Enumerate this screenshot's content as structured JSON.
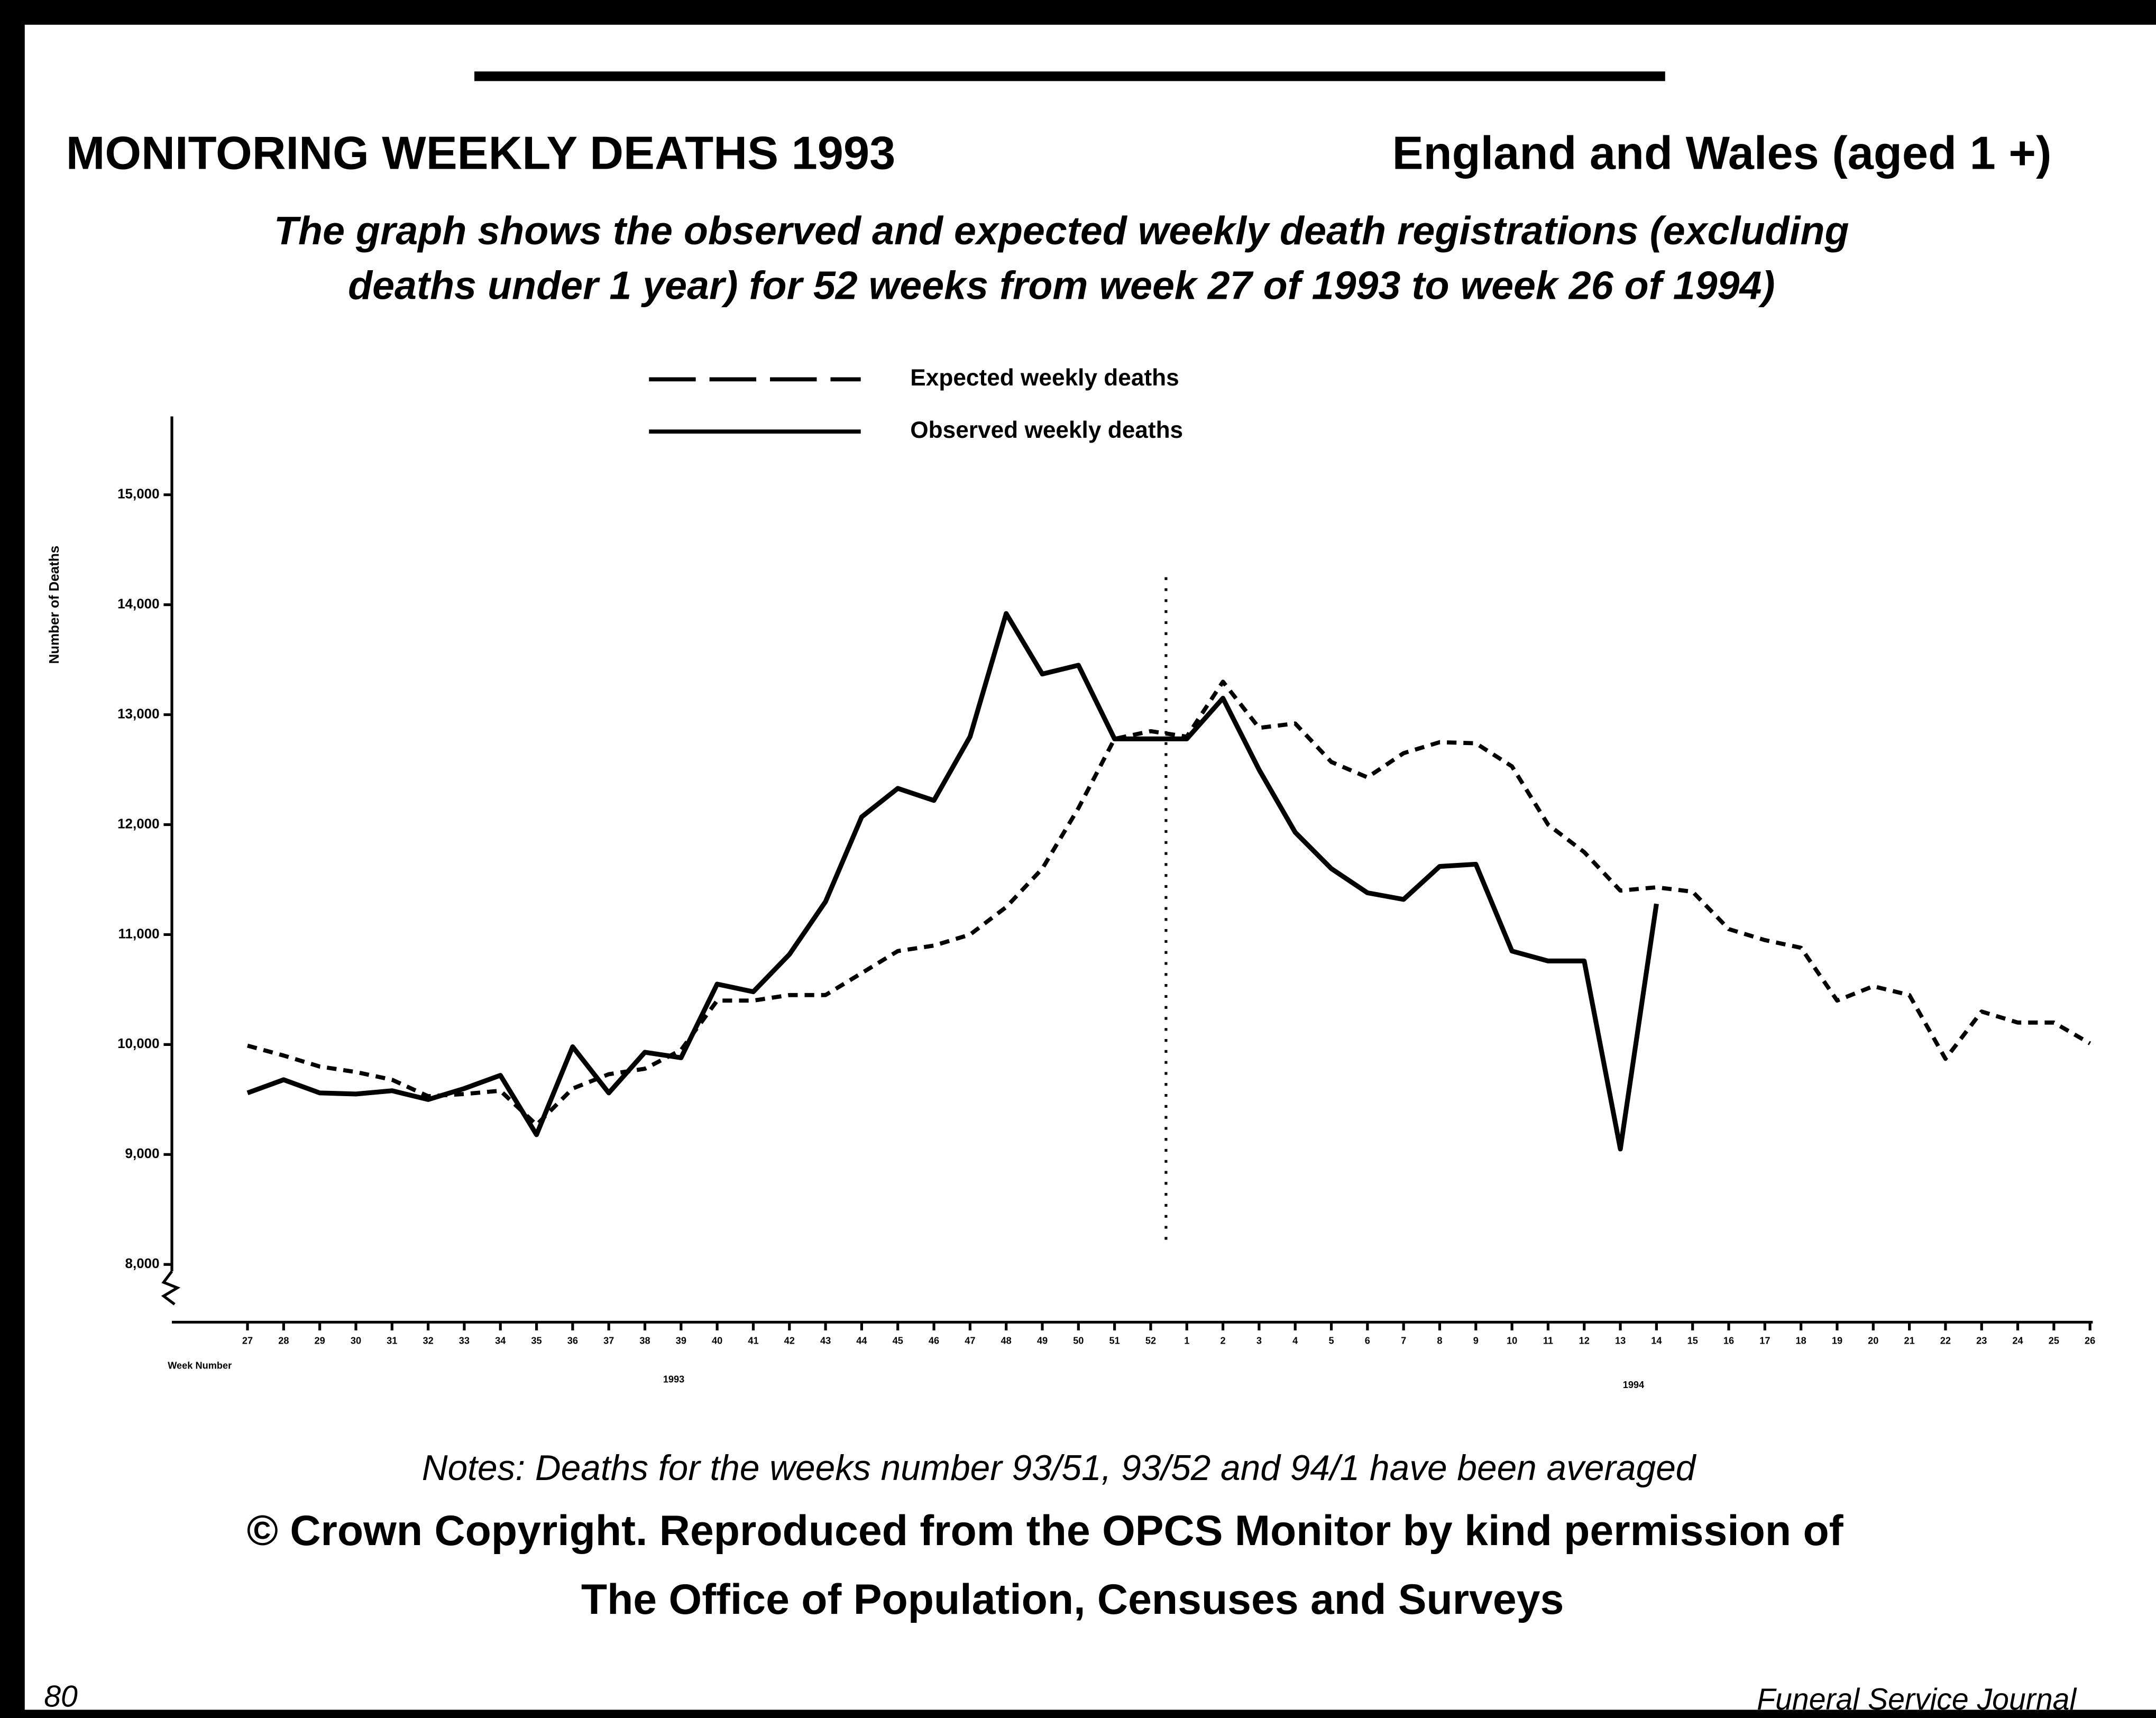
{
  "chart_data": {
    "type": "line",
    "title": "MONITORING WEEKLY DEATHS 1993",
    "title_right": "England and Wales (aged 1 +)",
    "subtitle": [
      "The graph shows the observed and expected weekly death registrations (excluding",
      "deaths under 1 year) for 52 weeks from week 27 of 1993 to week 26 of 1994)"
    ],
    "y_label": "Number of Deaths",
    "x_label": "Week Number",
    "year_labels": [
      "1993",
      "1994"
    ],
    "categories": [
      "27",
      "28",
      "29",
      "30",
      "31",
      "32",
      "33",
      "34",
      "35",
      "36",
      "37",
      "38",
      "39",
      "40",
      "41",
      "42",
      "43",
      "44",
      "45",
      "46",
      "47",
      "48",
      "49",
      "50",
      "51",
      "52",
      "1",
      "2",
      "3",
      "4",
      "5",
      "6",
      "7",
      "8",
      "9",
      "10",
      "11",
      "12",
      "13",
      "14",
      "15",
      "16",
      "17",
      "18",
      "19",
      "20",
      "21",
      "22",
      "23",
      "24",
      "25",
      "26"
    ],
    "series": [
      {
        "name": "Expected weekly deaths",
        "color": "#000000",
        "line_style": "dashed",
        "values": [
          9990,
          9900,
          9800,
          9750,
          9680,
          9530,
          9550,
          9580,
          9270,
          9600,
          9730,
          9780,
          9950,
          10400,
          10400,
          10450,
          10450,
          10650,
          10850,
          10900,
          11000,
          11250,
          11600,
          12150,
          12780,
          12850,
          12800,
          13300,
          12880,
          12920,
          12570,
          12430,
          12650,
          12750,
          12740,
          12530,
          12000,
          11750,
          11400,
          11430,
          11390,
          11050,
          10950,
          10880,
          10400,
          10530,
          10450,
          9870,
          10300,
          10200,
          10200,
          10010
        ]
      },
      {
        "name": "Observed weekly deaths",
        "color": "#000000",
        "line_style": "solid",
        "values": [
          9560,
          9680,
          9560,
          9550,
          9580,
          9500,
          9600,
          9720,
          9180,
          9980,
          9560,
          9930,
          9880,
          10550,
          10480,
          10820,
          11300,
          12070,
          12330,
          12220,
          12800,
          13920,
          13370,
          13450,
          12780,
          12780,
          12780,
          13150,
          12500,
          11930,
          11600,
          11380,
          11320,
          11620,
          11640,
          10850,
          10760,
          10760,
          9050,
          11280,
          null,
          null,
          null,
          null,
          null,
          null,
          null,
          null,
          null,
          null,
          null,
          null
        ]
      }
    ],
    "ylim": [
      7550,
      15700
    ],
    "yticks": [
      {
        "value": 8000,
        "label": "8,000"
      },
      {
        "value": 9000,
        "label": "9,000"
      },
      {
        "value": 10000,
        "label": "10,000"
      },
      {
        "value": 11000,
        "label": "11,000"
      },
      {
        "value": 12000,
        "label": "12,000"
      },
      {
        "value": 13000,
        "label": "13,000"
      },
      {
        "value": 14000,
        "label": "14,000"
      },
      {
        "value": 15000,
        "label": "15,000"
      }
    ],
    "grid": false,
    "notes": "Notes: Deaths for the weeks number  93/51, 93/52 and 94/1 have been averaged",
    "copyright": [
      "© Crown Copyright.  Reproduced from the OPCS Monitor by kind permission of",
      "The Office of Population, Censuses and Surveys"
    ]
  },
  "footer": {
    "page": "80",
    "journal": "Funeral Service Journal"
  }
}
